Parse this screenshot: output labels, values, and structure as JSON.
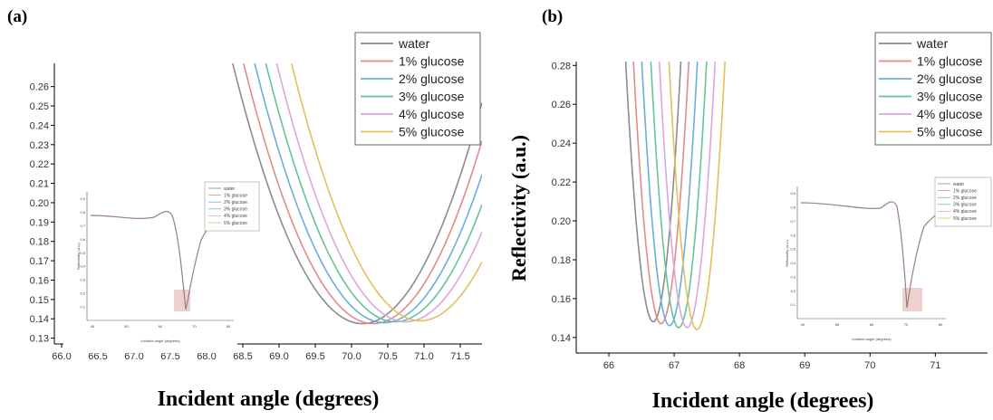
{
  "chart_data": [
    {
      "panel": "(a)",
      "type": "line",
      "xlabel": "Incident angle (degrees)",
      "ylabel": "",
      "xlim": [
        65.9,
        71.8
      ],
      "ylim": [
        0.127,
        0.272
      ],
      "xticks": [
        "66.0",
        "66.5",
        "67.0",
        "67.5",
        "68.0",
        "68.5",
        "69.0",
        "69.5",
        "70.0",
        "70.5",
        "71.0",
        "71.5"
      ],
      "yticks": [
        "0.13",
        "0.14",
        "0.15",
        "0.16",
        "0.17",
        "0.18",
        "0.19",
        "0.20",
        "0.21",
        "0.22",
        "0.23",
        "0.24",
        "0.25",
        "0.26"
      ],
      "legend_position": "top-right",
      "series": [
        {
          "name": "water",
          "color": "#8c8c8c",
          "min_x": 70.15,
          "min_y": 0.1375,
          "k": 0.042
        },
        {
          "name": "1% glucose",
          "color": "#e58a8a",
          "min_x": 70.3,
          "min_y": 0.1375,
          "k": 0.042
        },
        {
          "name": "2% glucose",
          "color": "#6aaee0",
          "min_x": 70.45,
          "min_y": 0.138,
          "k": 0.042
        },
        {
          "name": "3% glucose",
          "color": "#66c29a",
          "min_x": 70.6,
          "min_y": 0.1385,
          "k": 0.042
        },
        {
          "name": "4% glucose",
          "color": "#d8a8dd",
          "min_x": 70.75,
          "min_y": 0.1385,
          "k": 0.042
        },
        {
          "name": "5% glucose",
          "color": "#e3c05a",
          "min_x": 70.95,
          "min_y": 0.139,
          "k": 0.042
        }
      ],
      "inset": {
        "xlabel": "Incident angle (degrees)",
        "ylabel": "Reflectivity (a.u.)",
        "xticks": [
          "40",
          "50",
          "60",
          "70",
          "80"
        ],
        "yticks": [
          "0.1",
          "0.2",
          "0.3",
          "0.4",
          "0.5",
          "0.6",
          "0.7",
          "0.8",
          "0.9"
        ],
        "legend": [
          "water",
          "1% glucose",
          "2% glucose",
          "3% glucose",
          "4% glucose",
          "5% glucose"
        ]
      }
    },
    {
      "panel": "(b)",
      "type": "line",
      "xlabel": "Incident angle (degrees)",
      "ylabel": "Reflectivity (a.u.)",
      "xlim": [
        65.5,
        71.8
      ],
      "ylim": [
        0.132,
        0.282
      ],
      "xticks": [
        "66",
        "67",
        "68",
        "69",
        "70",
        "71"
      ],
      "yticks": [
        "0.14",
        "0.16",
        "0.18",
        "0.20",
        "0.22",
        "0.24",
        "0.26",
        "0.28"
      ],
      "legend_position": "top-right",
      "series": [
        {
          "name": "water",
          "color": "#8c8c8c",
          "min_x": 66.68,
          "min_y": 0.148,
          "k": 0.75
        },
        {
          "name": "1% glucose",
          "color": "#e58a8a",
          "min_x": 66.8,
          "min_y": 0.147,
          "k": 0.75
        },
        {
          "name": "2% glucose",
          "color": "#6aaee0",
          "min_x": 66.93,
          "min_y": 0.146,
          "k": 0.75
        },
        {
          "name": "3% glucose",
          "color": "#66c29a",
          "min_x": 67.07,
          "min_y": 0.145,
          "k": 0.75
        },
        {
          "name": "4% glucose",
          "color": "#d8a8dd",
          "min_x": 67.2,
          "min_y": 0.145,
          "k": 0.75
        },
        {
          "name": "5% glucose",
          "color": "#e3c05a",
          "min_x": 67.35,
          "min_y": 0.144,
          "k": 0.75
        }
      ],
      "inset": {
        "xlabel": "Incident angle (degrees)",
        "ylabel": "Reflectivity (a.u.)",
        "xticks": [
          "40",
          "50",
          "60",
          "70",
          "80"
        ],
        "yticks": [
          "0.1",
          "0.2",
          "0.3",
          "0.4",
          "0.5",
          "0.6",
          "0.7",
          "0.8",
          "0.9"
        ],
        "legend": [
          "water",
          "1% glucose",
          "2% glucose",
          "3% glucose",
          "4% glucose",
          "5% glucose"
        ]
      }
    }
  ]
}
